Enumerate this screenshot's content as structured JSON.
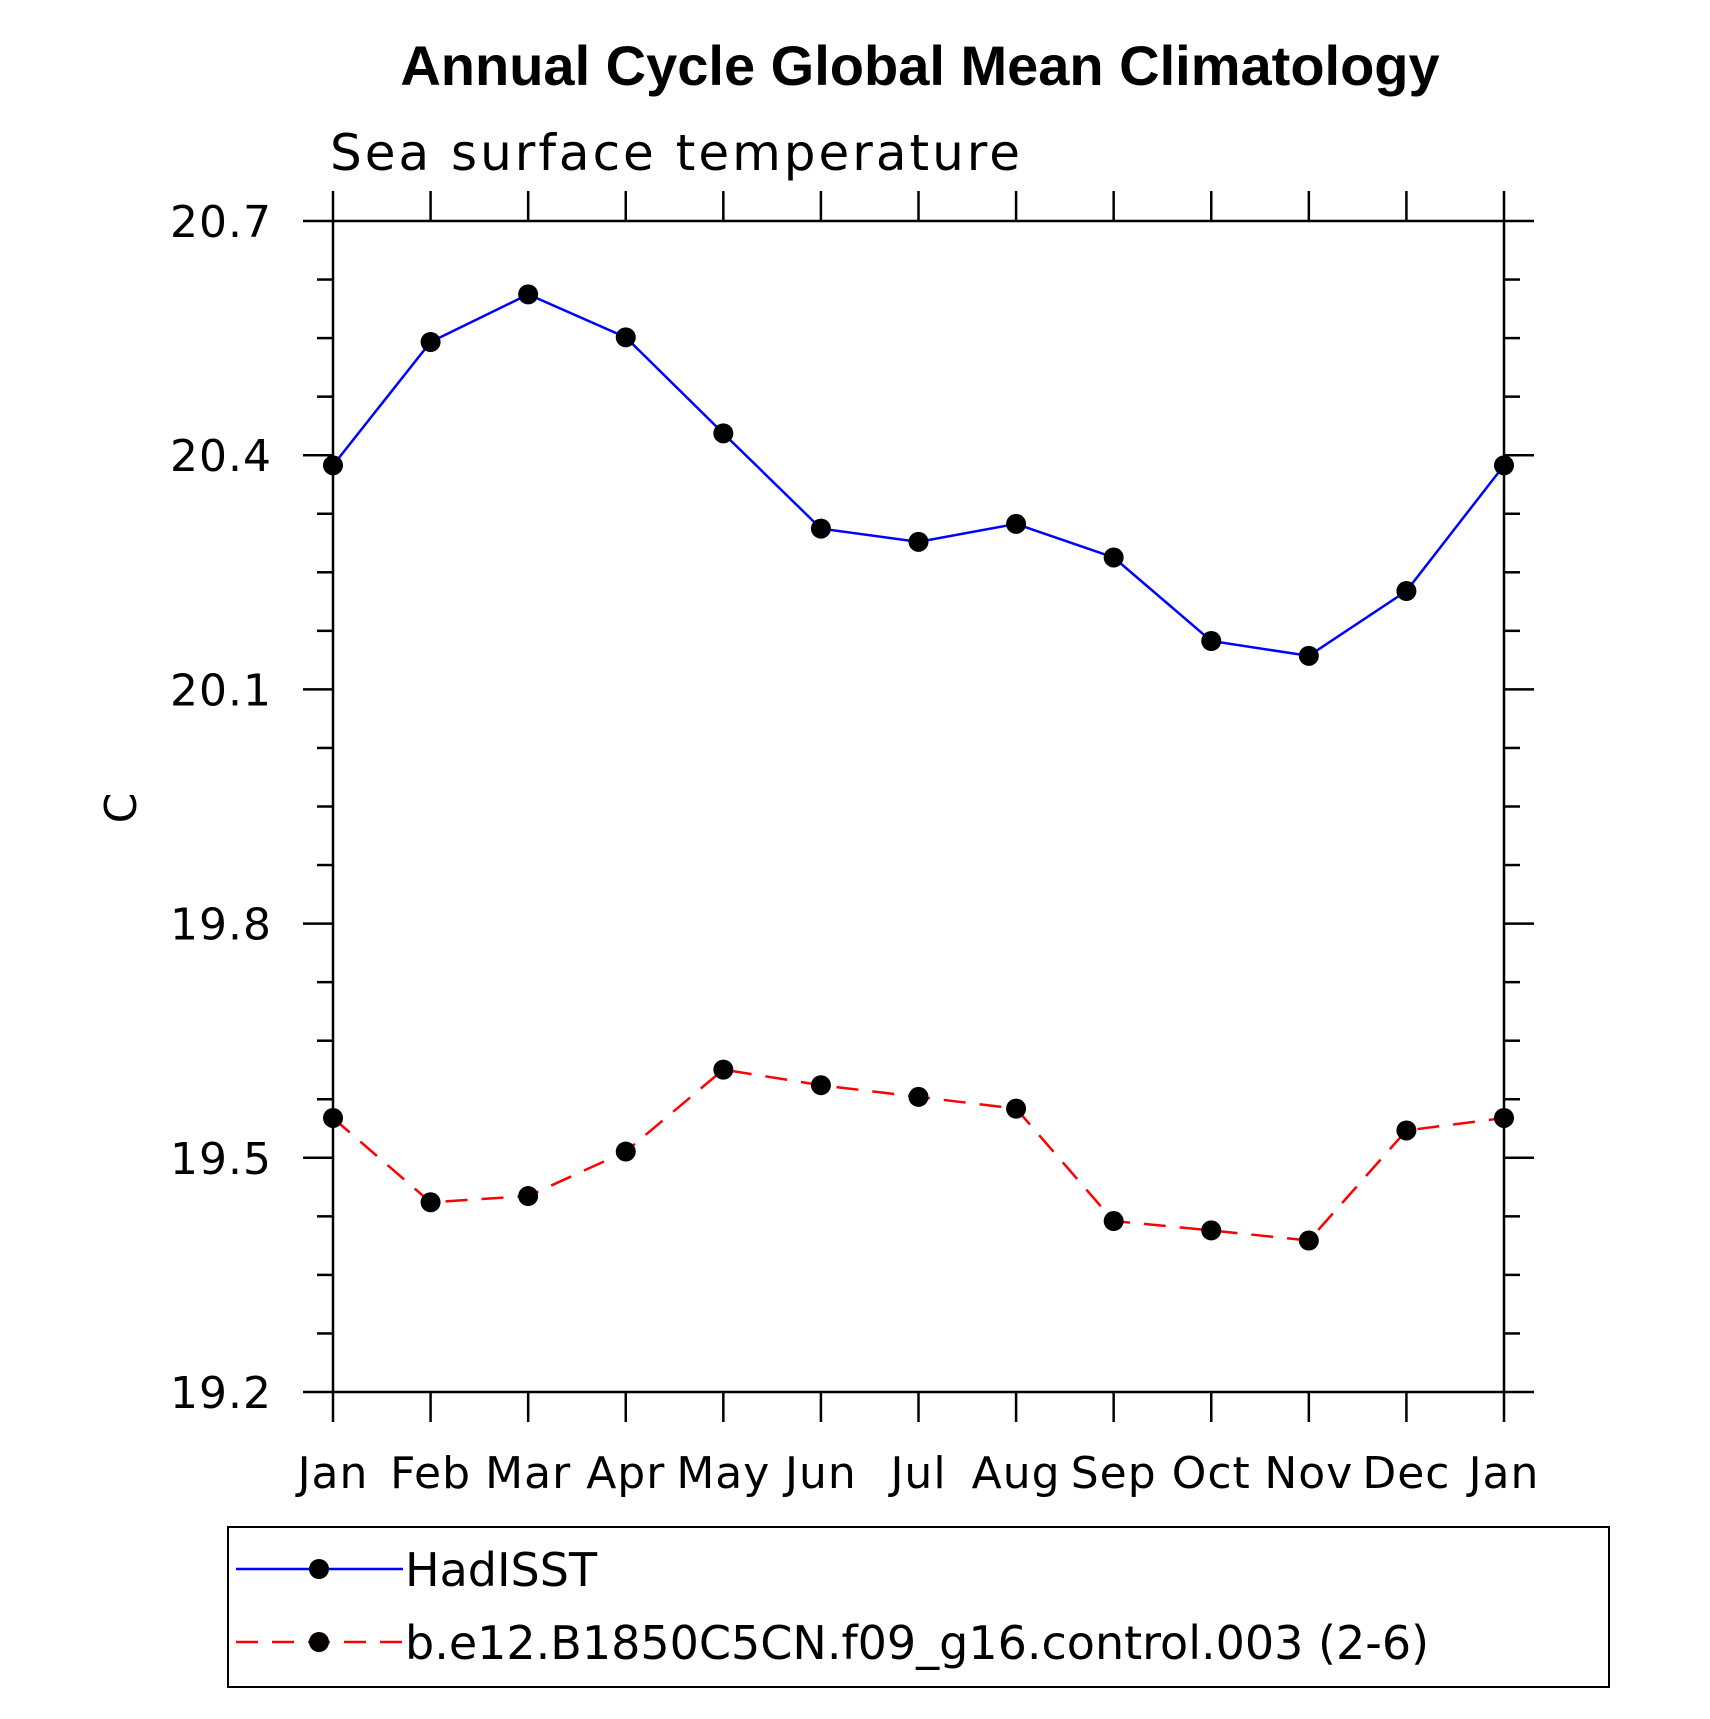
{
  "chart_data": {
    "type": "line",
    "title": "Annual Cycle Global Mean Climatology",
    "subtitle": "Sea surface temperature",
    "xlabel": "",
    "ylabel": "C",
    "categories": [
      "Jan",
      "Feb",
      "Mar",
      "Apr",
      "May",
      "Jun",
      "Jul",
      "Aug",
      "Sep",
      "Oct",
      "Nov",
      "Dec",
      "Jan"
    ],
    "ylim": [
      19.2,
      20.7
    ],
    "yticks": [
      "19.2",
      "19.5",
      "19.8",
      "20.1",
      "20.4",
      "20.7"
    ],
    "grid": false,
    "legend_position": "bottom",
    "series": [
      {
        "name": "HadISST",
        "color": "#0000ff",
        "style": "solid",
        "marker": "circle",
        "values": [
          20.387,
          20.545,
          20.606,
          20.551,
          20.428,
          20.306,
          20.289,
          20.312,
          20.269,
          20.162,
          20.143,
          20.226,
          20.387
        ]
      },
      {
        "name": "b.e12.B1850C5CN.f09_g16.control.003 (2-6)",
        "color": "#ff0000",
        "style": "dashed",
        "marker": "circle",
        "values": [
          19.551,
          19.443,
          19.451,
          19.508,
          19.613,
          19.593,
          19.578,
          19.563,
          19.419,
          19.407,
          19.394,
          19.535,
          19.551
        ]
      }
    ]
  }
}
